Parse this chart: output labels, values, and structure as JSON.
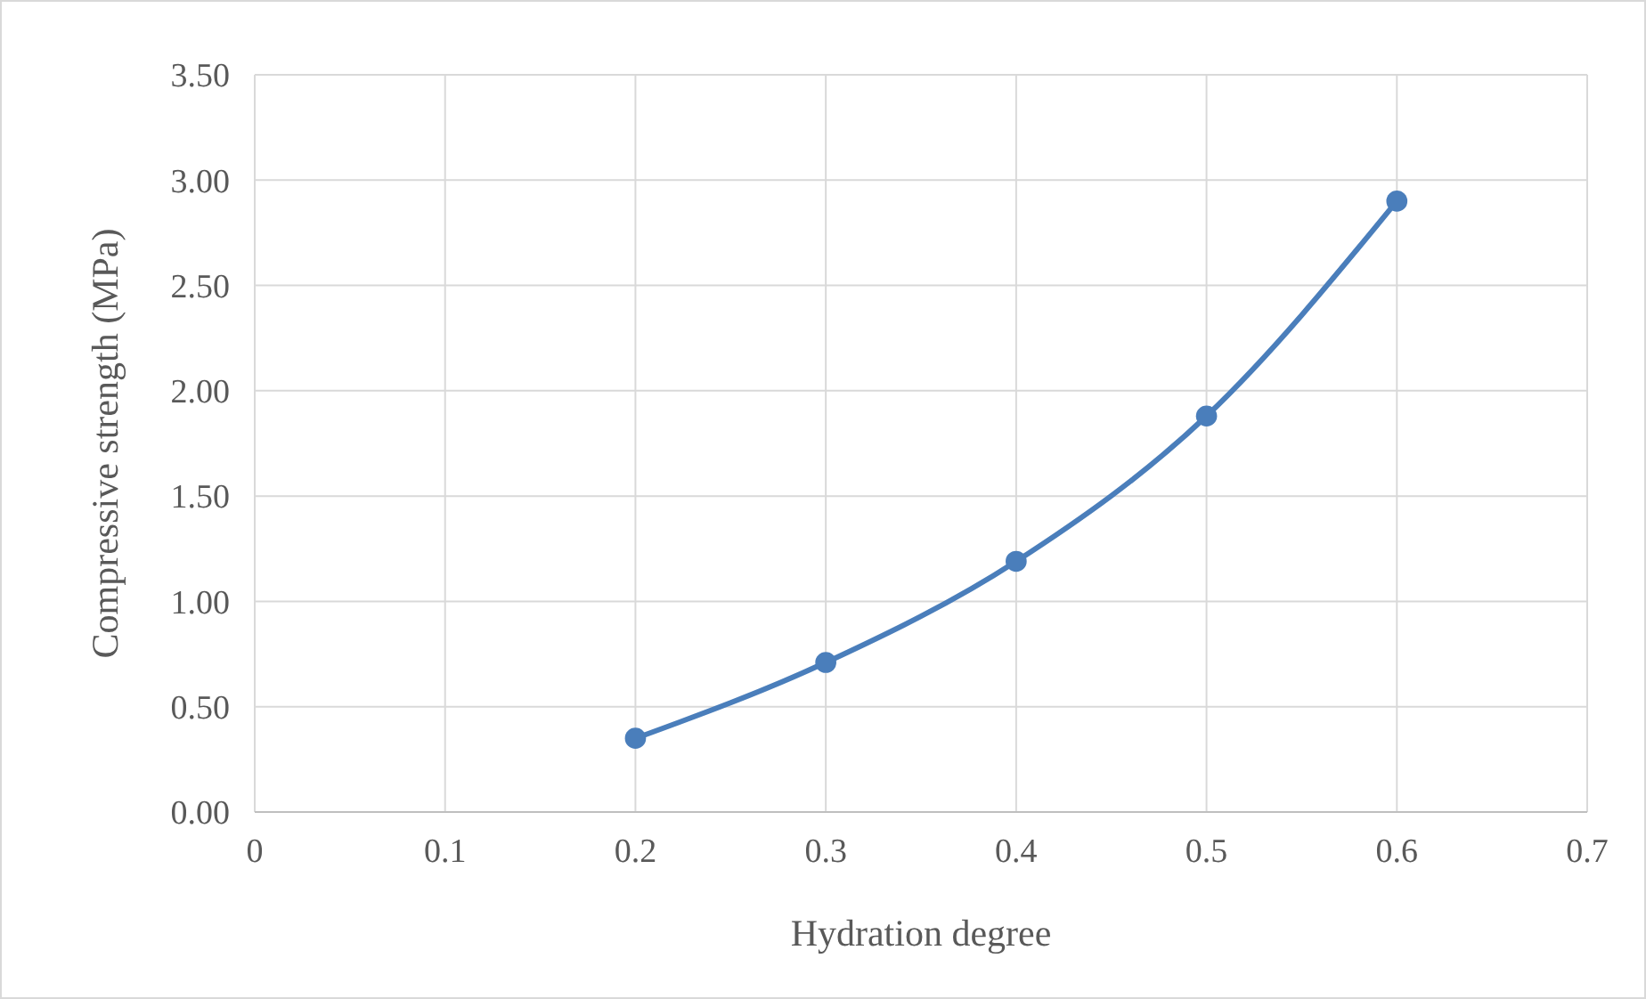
{
  "chart_data": {
    "type": "line",
    "xlabel": "Hydration degree",
    "ylabel": "Compressive strength (MPa)",
    "x": [
      0.2,
      0.3,
      0.4,
      0.5,
      0.6
    ],
    "series": [
      {
        "color": "#4a7ebb",
        "values": [
          0.35,
          0.71,
          1.19,
          1.88,
          2.9
        ]
      }
    ],
    "xlim": [
      0,
      0.7
    ],
    "xticks": [
      0,
      0.1,
      0.2,
      0.3,
      0.4,
      0.5,
      0.6,
      0.7
    ],
    "ylim": [
      0,
      3.5
    ],
    "yticks": [
      {
        "value": 0,
        "label": "0.00"
      },
      {
        "value": 0.5,
        "label": "0.50"
      },
      {
        "value": 1,
        "label": "1.00"
      },
      {
        "value": 1.5,
        "label": "1.50"
      },
      {
        "value": 2,
        "label": "2.00"
      },
      {
        "value": 2.5,
        "label": "2.50"
      },
      {
        "value": 3,
        "label": "3.00"
      },
      {
        "value": 3.5,
        "label": "3.50"
      }
    ],
    "grid": true,
    "marker": "circle",
    "line_style": "solid"
  }
}
